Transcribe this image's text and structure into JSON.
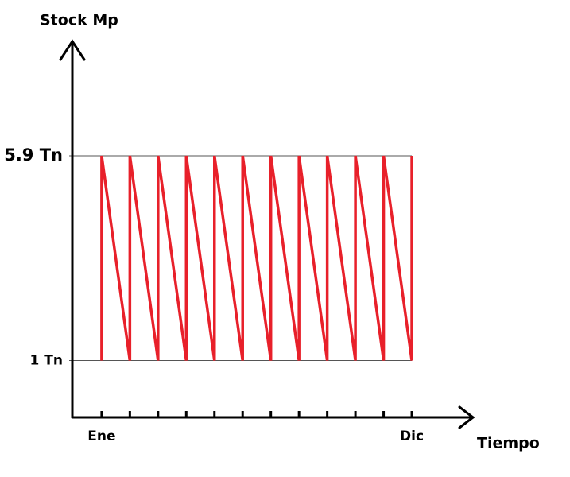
{
  "chart_data": {
    "type": "line",
    "y_label": "Stock Mp",
    "x_label": "Tiempo",
    "xlim": [
      -1.04,
      13.17
    ],
    "xticks": [
      {
        "value": 0,
        "label": "Ene"
      },
      {
        "value": 1,
        "label": null
      },
      {
        "value": 2,
        "label": null
      },
      {
        "value": 3,
        "label": null
      },
      {
        "value": 4,
        "label": null
      },
      {
        "value": 5,
        "label": null
      },
      {
        "value": 6,
        "label": null
      },
      {
        "value": 7,
        "label": null
      },
      {
        "value": 8,
        "label": null
      },
      {
        "value": 9,
        "label": null
      },
      {
        "value": 10,
        "label": null
      },
      {
        "value": 11,
        "label": "Dic"
      }
    ],
    "ylim": [
      -0.36,
      8.64
    ],
    "yticks": [
      {
        "value": 5.9,
        "label": "5.9 Tn"
      },
      {
        "value": 1,
        "label": "1 Tn"
      }
    ],
    "grid": true,
    "series": [
      {
        "color": "#e8202a",
        "x": [
          0,
          0,
          1,
          1,
          2,
          2,
          3,
          3,
          4,
          4,
          5,
          5,
          6,
          6,
          7,
          7,
          8,
          8,
          9,
          9,
          10,
          10,
          11,
          11
        ],
        "values": [
          1,
          5.9,
          1,
          5.9,
          1,
          5.9,
          1,
          5.9,
          1,
          5.9,
          1,
          5.9,
          1,
          5.9,
          1,
          5.9,
          1,
          5.9,
          1,
          5.9,
          1,
          5.9,
          1,
          5.9
        ]
      }
    ]
  }
}
